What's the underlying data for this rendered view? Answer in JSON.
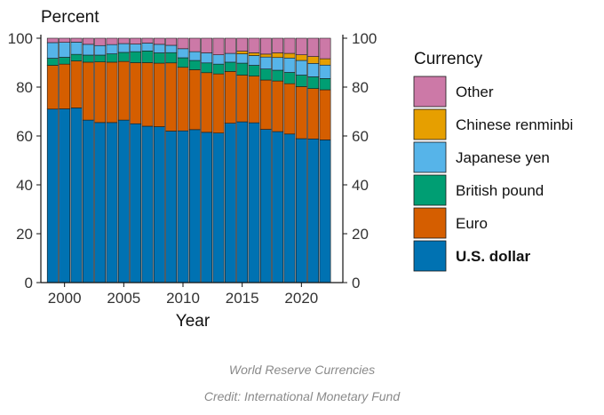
{
  "chart_data": {
    "type": "bar",
    "stacked": true,
    "ylabel": "Percent",
    "xlabel": "Year",
    "ylim": [
      0,
      100
    ],
    "yticks": [
      0,
      20,
      40,
      60,
      80,
      100
    ],
    "xticks": [
      2000,
      2005,
      2010,
      2015,
      2020
    ],
    "categories": [
      1999,
      2000,
      2001,
      2002,
      2003,
      2004,
      2005,
      2006,
      2007,
      2008,
      2009,
      2010,
      2011,
      2012,
      2013,
      2014,
      2015,
      2016,
      2017,
      2018,
      2019,
      2020,
      2021,
      2022
    ],
    "legend_title": "Currency",
    "legend_position": "right",
    "series": [
      {
        "name": "U.S. dollar",
        "color": "#0072b2",
        "bold": true,
        "values": [
          71.0,
          71.1,
          71.5,
          66.5,
          65.5,
          65.5,
          66.5,
          65.0,
          64.0,
          63.8,
          62.0,
          62.1,
          62.6,
          61.5,
          61.2,
          65.2,
          65.8,
          65.4,
          62.7,
          61.8,
          60.8,
          58.9,
          58.8,
          58.4
        ]
      },
      {
        "name": "Euro",
        "color": "#d55e00",
        "values": [
          17.9,
          18.3,
          19.2,
          23.7,
          24.8,
          24.7,
          24.0,
          25.0,
          26.0,
          26.0,
          27.9,
          26.0,
          24.5,
          24.4,
          24.2,
          21.2,
          19.1,
          19.1,
          20.2,
          20.7,
          20.6,
          21.3,
          20.6,
          20.5
        ]
      },
      {
        "name": "British pound",
        "color": "#009e73",
        "values": [
          2.9,
          2.8,
          2.7,
          2.9,
          2.8,
          3.4,
          3.7,
          4.5,
          4.8,
          4.2,
          4.2,
          3.9,
          3.8,
          4.0,
          4.0,
          3.8,
          4.9,
          4.4,
          4.5,
          4.4,
          4.6,
          4.7,
          4.8,
          4.6
        ]
      },
      {
        "name": "Japanese yen",
        "color": "#56b4e9",
        "values": [
          6.4,
          6.1,
          5.0,
          4.4,
          3.9,
          3.8,
          3.6,
          3.1,
          3.2,
          3.5,
          3.0,
          3.7,
          3.6,
          4.1,
          3.8,
          3.6,
          3.8,
          4.0,
          4.9,
          5.2,
          5.9,
          6.0,
          5.5,
          5.5
        ]
      },
      {
        "name": "Chinese renminbi",
        "color": "#e69f00",
        "values": [
          0,
          0,
          0,
          0,
          0,
          0,
          0,
          0,
          0,
          0,
          0,
          0,
          0,
          0,
          0,
          0,
          1.1,
          1.1,
          1.2,
          1.9,
          1.9,
          2.3,
          2.8,
          2.6
        ]
      },
      {
        "name": "Other",
        "color": "#cc79a7",
        "values": [
          1.8,
          1.7,
          1.6,
          2.5,
          3.0,
          2.6,
          2.2,
          2.4,
          2.0,
          2.5,
          2.9,
          4.3,
          5.5,
          6.0,
          6.8,
          6.2,
          5.3,
          6.0,
          6.5,
          6.0,
          6.2,
          6.8,
          7.5,
          8.4
        ]
      }
    ]
  },
  "caption": {
    "title": "World Reserve Currencies",
    "credit": "Credit: International Monetary Fund"
  }
}
